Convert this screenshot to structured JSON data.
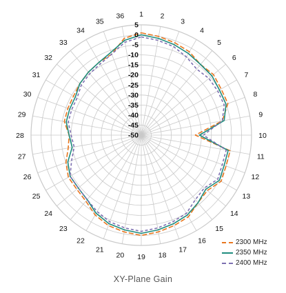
{
  "title": "XY-Plane Gain",
  "chart_data": {
    "type": "polar-line",
    "title": "XY-Plane Gain",
    "angle_labels": [
      "1",
      "2",
      "3",
      "4",
      "5",
      "6",
      "7",
      "8",
      "9",
      "10",
      "11",
      "12",
      "13",
      "14",
      "15",
      "16",
      "17",
      "18",
      "19",
      "20",
      "21",
      "22",
      "23",
      "24",
      "25",
      "26",
      "27",
      "28",
      "29",
      "30",
      "31",
      "32",
      "33",
      "34",
      "35",
      "36"
    ],
    "radial_ticks": [
      5,
      0,
      -5,
      -10,
      -15,
      -20,
      -25,
      -30,
      -35,
      -40,
      -45,
      -50
    ],
    "radial_range": [
      -50,
      5
    ],
    "grid": true,
    "legend_position": "bottom-right",
    "series": [
      {
        "name": "2300 MHz",
        "color": "#E8761E",
        "dash": "7,3",
        "values": [
          1,
          0,
          -1,
          -2,
          -4,
          -3,
          -4,
          -4,
          -9,
          -23,
          -5,
          -5,
          -4,
          -7,
          -6,
          -3,
          -2,
          -1,
          0,
          -1,
          -2,
          -4,
          -7,
          -8,
          -8,
          -10,
          -13,
          -14,
          -11,
          -11,
          -11,
          -10,
          -9,
          -8,
          -7,
          -1
        ]
      },
      {
        "name": "2350 MHz",
        "color": "#1E8C7E",
        "dash": "",
        "values": [
          0,
          -1,
          -2,
          -3,
          -4,
          -4,
          -5,
          -5,
          -8,
          -21,
          -6,
          -6,
          -5,
          -8,
          -6,
          -4,
          -3,
          -2,
          -1,
          -2,
          -3,
          -5,
          -8,
          -9,
          -9,
          -11,
          -15,
          -14,
          -12,
          -12,
          -12,
          -10,
          -9,
          -8,
          -6,
          -2
        ]
      },
      {
        "name": "2400 MHz",
        "color": "#7C6FB0",
        "dash": "4,3",
        "values": [
          -1,
          -2,
          -3,
          -5,
          -7,
          -6,
          -6,
          -6,
          -9,
          -19,
          -7,
          -7,
          -6,
          -9,
          -8,
          -5,
          -4,
          -3,
          -2,
          -3,
          -4,
          -6,
          -8,
          -9,
          -9,
          -13,
          -16,
          -15,
          -13,
          -13,
          -13,
          -11,
          -10,
          -9,
          -7,
          -3
        ]
      }
    ]
  }
}
